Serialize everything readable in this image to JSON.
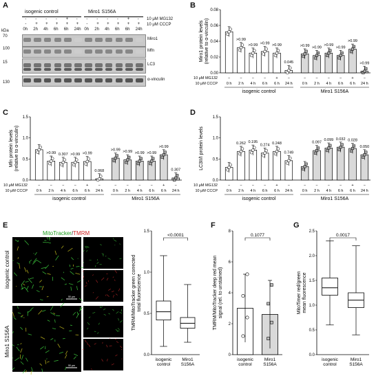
{
  "panel_letters": {
    "A": "A",
    "B": "B",
    "C": "C",
    "D": "D",
    "E": "E",
    "F": "F",
    "G": "G"
  },
  "blot": {
    "kda": "kDa",
    "group_left": "isogenic control",
    "group_right": "Miro1 S156A",
    "mg132_label": "10 μM MG132",
    "cccp_label": "10 μM CCCP",
    "mg132_signs": [
      "-",
      "-",
      "-",
      "-",
      "+",
      "-",
      "-",
      "-",
      "-",
      "-",
      "+",
      "-"
    ],
    "cccp_signs": [
      "-",
      "+",
      "+",
      "+",
      "+",
      "+",
      "-",
      "+",
      "+",
      "+",
      "+",
      "+"
    ],
    "time_labels": [
      "0h",
      "2h",
      "4h",
      "6h",
      "6h",
      "24h",
      "0h",
      "2h",
      "4h",
      "6h",
      "6h",
      "24h"
    ],
    "markers": [
      "70",
      "100",
      "15",
      "130"
    ],
    "bands": [
      "Miro1",
      "Mfn",
      "LC3",
      "α-vinculin"
    ]
  },
  "x_axis": {
    "mg132_label": "10 μM MG132",
    "cccp_label": "10 μM CCCP",
    "mg132_signs": [
      "−",
      "−",
      "−",
      "−",
      "+",
      "−"
    ],
    "cccp_signs": [
      "0 h",
      "2 h",
      "4 h",
      "6 h",
      "6 h",
      "24 h"
    ],
    "group_left": "isogenic control",
    "group_right": "Miro1 S156A"
  },
  "chart_data": [
    {
      "panel": "B",
      "type": "bar",
      "ylabel": "Miro1 protein levels (relative to α-vinculin)",
      "ylim": [
        0,
        0.08
      ],
      "yticks": [
        "0.00",
        "0.02",
        "0.04",
        "0.06",
        "0.08"
      ],
      "categories": [
        "0 h",
        "2 h",
        "4 h",
        "6 h",
        "6 h",
        "24 h"
      ],
      "series": [
        {
          "name": "isogenic control",
          "values": [
            0.052,
            0.032,
            0.025,
            0.027,
            0.025,
            0.003
          ]
        },
        {
          "name": "Miro1 S156A",
          "values": [
            0.024,
            0.022,
            0.025,
            0.022,
            0.03,
            0.002
          ]
        }
      ],
      "annotations_control": [
        "",
        ">0.99",
        ">0.99",
        ">0.99",
        ">0.99",
        "0.045"
      ],
      "annotations_mutant": [
        ">0.99",
        ">0.99",
        ">0.99",
        ">0.99",
        ">0.99",
        ">0.99"
      ]
    },
    {
      "panel": "C",
      "type": "bar",
      "ylabel": "Mfn protein levels (relative to α-vinculin)",
      "ylim": [
        0,
        1.5
      ],
      "yticks": [
        "0.0",
        "0.5",
        "1.0",
        "1.5"
      ],
      "categories": [
        "0 h",
        "2 h",
        "4 h",
        "6 h",
        "6 h",
        "24 h"
      ],
      "series": [
        {
          "name": "isogenic control",
          "values": [
            0.72,
            0.45,
            0.42,
            0.42,
            0.44,
            0.03
          ]
        },
        {
          "name": "Miro1 S156A",
          "values": [
            0.52,
            0.48,
            0.45,
            0.45,
            0.6,
            0.05
          ]
        }
      ],
      "annotations_control": [
        "",
        ">0.99",
        "0.307",
        ">0.99",
        ">0.99",
        "0.068"
      ],
      "annotations_mutant": [
        ">0.99",
        ">0.99",
        ">0.99",
        ">0.99",
        ">0.99",
        "0.307"
      ]
    },
    {
      "panel": "D",
      "type": "bar",
      "ylabel": "LC3II/I protein levels",
      "ylim": [
        0,
        1.5
      ],
      "yticks": [
        "0.0",
        "0.5",
        "1.0",
        "1.5"
      ],
      "categories": [
        "0 h",
        "2 h",
        "4 h",
        "6 h",
        "6 h",
        "24 h"
      ],
      "series": [
        {
          "name": "isogenic control",
          "values": [
            0.3,
            0.68,
            0.71,
            0.64,
            0.68,
            0.46
          ]
        },
        {
          "name": "Miro1 S156A",
          "values": [
            0.32,
            0.7,
            0.76,
            0.78,
            0.75,
            0.6
          ]
        }
      ],
      "annotations_control": [
        "",
        "0.262",
        "0.195",
        "0.274",
        "0.248",
        "0.749"
      ],
      "annotations_mutant": [
        "",
        "0.097",
        "0.099",
        "0.032",
        "0.028",
        "0.050"
      ]
    },
    {
      "panel": "E",
      "type": "box",
      "ylabel": "TMRM/MitoTracker green corrected total fluorescence",
      "ylim": [
        0,
        1.5
      ],
      "yticks": [
        "0.0",
        "0.5",
        "1.0",
        "1.5"
      ],
      "categories": [
        "isogenic control",
        "Miro1 S156A"
      ],
      "boxes": [
        {
          "min": 0.1,
          "q1": 0.42,
          "median": 0.52,
          "q3": 0.65,
          "max": 1.2
        },
        {
          "min": 0.15,
          "q1": 0.32,
          "median": 0.38,
          "q3": 0.45,
          "max": 0.85
        }
      ],
      "p_value": "<0.0001"
    },
    {
      "panel": "F",
      "type": "bar",
      "ylabel": "TMRM/MitoTracker deep red mean signal (rel. to unstained)",
      "ylim": [
        0,
        8
      ],
      "yticks": [
        "0",
        "2",
        "4",
        "6",
        "8"
      ],
      "categories": [
        "isogenic control",
        "Miro1 S156A"
      ],
      "values": [
        3.0,
        2.6
      ],
      "p_value": "0.1077"
    },
    {
      "panel": "G",
      "type": "box",
      "ylabel": "MitoTimer red/green mean fluorescence",
      "ylim": [
        0,
        2.5
      ],
      "yticks": [
        "0.0",
        "0.5",
        "1.0",
        "1.5",
        "2.0",
        "2.5"
      ],
      "categories": [
        "isogenic control",
        "Miro1 S156A"
      ],
      "boxes": [
        {
          "min": 0.6,
          "q1": 1.2,
          "median": 1.35,
          "q3": 1.55,
          "max": 2.3
        },
        {
          "min": 0.4,
          "q1": 0.95,
          "median": 1.1,
          "q3": 1.25,
          "max": 2.2
        }
      ],
      "p_value": "0.0017"
    }
  ],
  "micrograph": {
    "title_green": "MitoTracker",
    "title_sep": "/",
    "title_red": "TMRM",
    "row1_label": "isogenic control",
    "row2_label": "Miro1 S156A",
    "scale": "50 μm",
    "colors": {
      "green": "#3fd03f",
      "red": "#e03030",
      "bg": "#000000"
    }
  }
}
